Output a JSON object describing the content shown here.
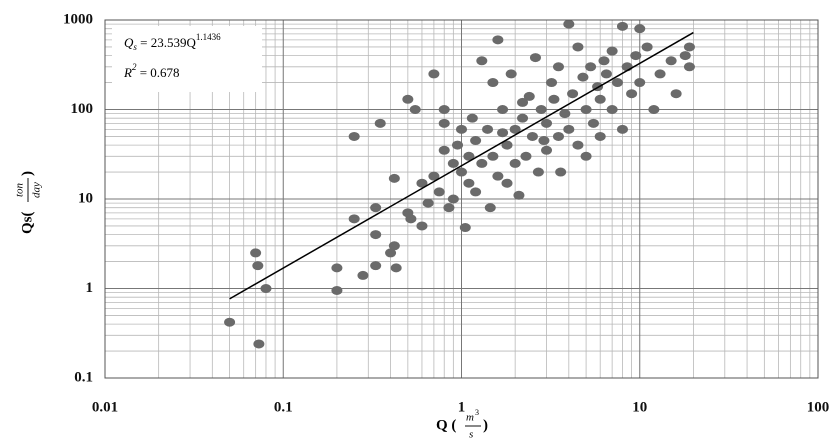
{
  "chart_data": {
    "type": "scatter",
    "log_x": true,
    "log_y": true,
    "grid": true,
    "xlim": [
      0.01,
      100
    ],
    "ylim": [
      0.1,
      1000
    ],
    "xticks": [
      0.01,
      0.1,
      1,
      10,
      100
    ],
    "yticks": [
      0.1,
      1,
      10,
      100,
      1000
    ],
    "x_minor_ticks": [
      0.02,
      0.03,
      0.04,
      0.05,
      0.06,
      0.07,
      0.08,
      0.09,
      0.2,
      0.3,
      0.4,
      0.5,
      0.6,
      0.7,
      0.8,
      0.9,
      2,
      3,
      4,
      5,
      6,
      7,
      8,
      9,
      20,
      30,
      40,
      50,
      60,
      70,
      80,
      90
    ],
    "y_minor_ticks": [
      0.2,
      0.3,
      0.4,
      0.5,
      0.6,
      0.7,
      0.8,
      0.9,
      2,
      3,
      4,
      5,
      6,
      7,
      8,
      9,
      20,
      30,
      40,
      50,
      60,
      70,
      80,
      90,
      200,
      300,
      400,
      500,
      600,
      700,
      800,
      900
    ],
    "x_label": {
      "text": "Q (",
      "numerator": "m",
      "exponent": "3",
      "denominator": "s",
      "close": ")"
    },
    "y_label": {
      "text": "Qs(",
      "numerator": "ton",
      "denominator": "day",
      "close": ")"
    },
    "equation": {
      "symbol": "Q",
      "subscript": "s",
      "text": " = 23.539Q",
      "exponent": "1.1436"
    },
    "r_squared": {
      "symbol": "R",
      "exponent": "2",
      "text": " = 0.678"
    },
    "series": [
      {
        "color": "#6a6a6a",
        "x": [
          0.05,
          0.07,
          0.072,
          0.073,
          0.08,
          0.2,
          0.2,
          0.25,
          0.25,
          0.28,
          0.33,
          0.33,
          0.33,
          0.35,
          0.4,
          0.42,
          0.42,
          0.43,
          0.5,
          0.5,
          0.55,
          0.52,
          0.6,
          0.6,
          0.65,
          0.7,
          0.7,
          0.75,
          0.8,
          0.8,
          0.8,
          0.85,
          0.9,
          0.9,
          0.95,
          1.0,
          1.0,
          1.05,
          1.1,
          1.1,
          1.15,
          1.2,
          1.2,
          1.3,
          1.3,
          1.4,
          1.5,
          1.5,
          1.6,
          1.6,
          1.7,
          1.8,
          1.8,
          1.9,
          2.0,
          2.0,
          2.1,
          2.2,
          2.3,
          2.4,
          2.5,
          2.6,
          2.7,
          2.8,
          3.0,
          3.0,
          3.2,
          3.3,
          3.5,
          3.5,
          3.8,
          4.0,
          4.0,
          4.2,
          4.5,
          4.5,
          4.8,
          5.0,
          5.0,
          5.3,
          5.5,
          5.8,
          6.0,
          6.0,
          6.3,
          6.5,
          7.0,
          7.0,
          7.5,
          8.0,
          8.0,
          8.5,
          9.0,
          9.5,
          10,
          10,
          11,
          12,
          13,
          15,
          16,
          18,
          19,
          19,
          2.2,
          3.6,
          2.9,
          1.7,
          1.45
        ],
        "values": [
          0.42,
          2.5,
          1.8,
          0.24,
          1.0,
          1.7,
          0.95,
          50,
          6,
          1.4,
          1.8,
          4,
          8,
          70,
          2.5,
          3,
          17,
          1.7,
          130,
          7,
          100,
          6,
          15,
          5,
          9,
          18,
          250,
          12,
          100,
          70,
          35,
          8,
          10,
          25,
          40,
          20,
          60,
          4.8,
          30,
          15,
          80,
          45,
          12,
          25,
          350,
          60,
          200,
          30,
          600,
          18,
          100,
          40,
          15,
          250,
          60,
          25,
          11,
          80,
          30,
          140,
          50,
          380,
          20,
          100,
          70,
          35,
          200,
          130,
          50,
          300,
          90,
          900,
          60,
          150,
          500,
          40,
          230,
          100,
          30,
          300,
          70,
          180,
          130,
          50,
          350,
          250,
          100,
          450,
          200,
          850,
          60,
          300,
          150,
          400,
          800,
          200,
          500,
          100,
          250,
          350,
          150,
          400,
          500,
          300,
          120,
          20,
          45,
          55,
          8
        ]
      }
    ],
    "trendline": {
      "color": "#000000",
      "x": [
        0.05,
        20
      ],
      "values": [
        0.7655,
        723.9
      ]
    }
  }
}
